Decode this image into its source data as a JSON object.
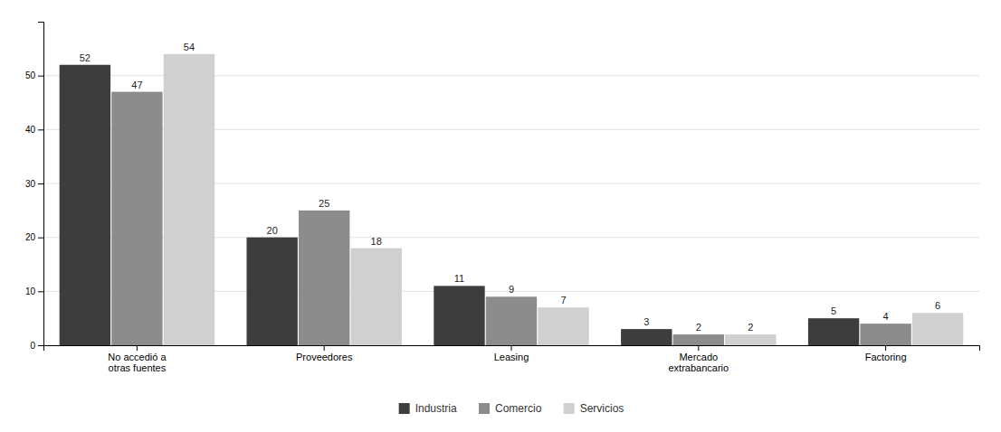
{
  "chart_data": {
    "type": "bar",
    "categories": [
      "No accedió a\notras fuentes",
      "Proveedores",
      "Leasing",
      "Mercado\nextrabancario",
      "Factoring"
    ],
    "series": [
      {
        "name": "Industria",
        "color": "#3d3d3d",
        "values": [
          52,
          20,
          11,
          3,
          5
        ]
      },
      {
        "name": "Comercio",
        "color": "#8c8c8c",
        "values": [
          47,
          25,
          9,
          2,
          4
        ]
      },
      {
        "name": "Servicios",
        "color": "#d0d0d0",
        "values": [
          54,
          18,
          7,
          2,
          6
        ]
      }
    ],
    "ylim": [
      0,
      60
    ],
    "yticks": [
      0,
      10,
      20,
      30,
      40,
      50
    ],
    "grid": true,
    "data_labels": true,
    "legend": "bottom"
  }
}
